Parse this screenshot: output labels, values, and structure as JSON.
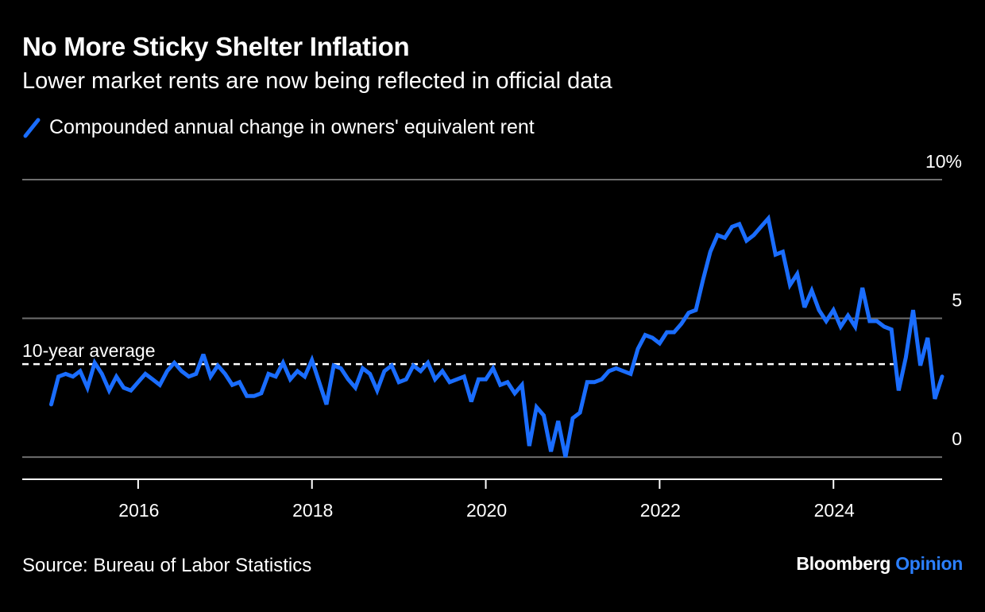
{
  "header": {
    "title": "No More Sticky Shelter Inflation",
    "subtitle": "Lower market rents are now being reflected in official data"
  },
  "footer": {
    "source": "Source: Bureau of Labor Statistics",
    "brand_main": "Bloomberg",
    "brand_accent": "Opinion"
  },
  "colors": {
    "series": "#1a6dff",
    "gridline": "#6e6e6e",
    "average": "#ffffff",
    "brand_accent": "#2b7fff"
  },
  "chart_data": {
    "type": "line",
    "title": "No More Sticky Shelter Inflation",
    "subtitle": "Lower market rents are now being reflected in official data",
    "xlabel": "",
    "ylabel": "",
    "y_unit": "%",
    "ylim": [
      -0.8,
      10
    ],
    "yticks": [
      {
        "value": 10,
        "label": "10%"
      },
      {
        "value": 5,
        "label": "5"
      },
      {
        "value": 0,
        "label": "0"
      }
    ],
    "xlim": [
      "2014-09",
      "2025-04"
    ],
    "xticks": [
      {
        "date": "2016-01",
        "label": "2016"
      },
      {
        "date": "2018-01",
        "label": "2018"
      },
      {
        "date": "2020-01",
        "label": "2020"
      },
      {
        "date": "2022-01",
        "label": "2022"
      },
      {
        "date": "2024-01",
        "label": "2024"
      }
    ],
    "grid": true,
    "legend": {
      "placement": "top-left"
    },
    "reference_line": {
      "label": "10-year average",
      "value": 3.35
    },
    "series": [
      {
        "name": "Compounded annual change in owners' equivalent rent",
        "start": "2015-01",
        "frequency": "monthly",
        "values": [
          1.9,
          2.9,
          3.0,
          2.9,
          3.1,
          2.5,
          3.4,
          3.0,
          2.4,
          2.9,
          2.5,
          2.4,
          2.7,
          3.0,
          2.8,
          2.6,
          3.1,
          3.4,
          3.1,
          2.9,
          3.0,
          3.7,
          2.9,
          3.3,
          3.0,
          2.6,
          2.7,
          2.2,
          2.2,
          2.3,
          3.0,
          2.9,
          3.4,
          2.8,
          3.1,
          2.9,
          3.5,
          2.7,
          1.9,
          3.3,
          3.2,
          2.8,
          2.5,
          3.2,
          3.0,
          2.4,
          3.1,
          3.3,
          2.7,
          2.8,
          3.3,
          3.1,
          3.4,
          2.8,
          3.1,
          2.7,
          2.8,
          2.9,
          2.0,
          2.8,
          2.8,
          3.2,
          2.6,
          2.7,
          2.3,
          2.6,
          0.4,
          1.8,
          1.5,
          0.2,
          1.3,
          0.0,
          1.4,
          1.6,
          2.7,
          2.7,
          2.8,
          3.1,
          3.2,
          3.1,
          3.0,
          3.9,
          4.4,
          4.3,
          4.1,
          4.5,
          4.5,
          4.8,
          5.2,
          5.3,
          6.4,
          7.4,
          8.0,
          7.9,
          8.3,
          8.4,
          7.8,
          8.0,
          8.3,
          8.6,
          7.3,
          7.4,
          6.2,
          6.6,
          5.4,
          6.0,
          5.3,
          4.9,
          5.3,
          4.7,
          5.1,
          4.7,
          6.1,
          4.9,
          4.9,
          4.7,
          4.6,
          2.4,
          3.6,
          5.3,
          3.3,
          4.3,
          2.1,
          2.9
        ]
      }
    ]
  }
}
